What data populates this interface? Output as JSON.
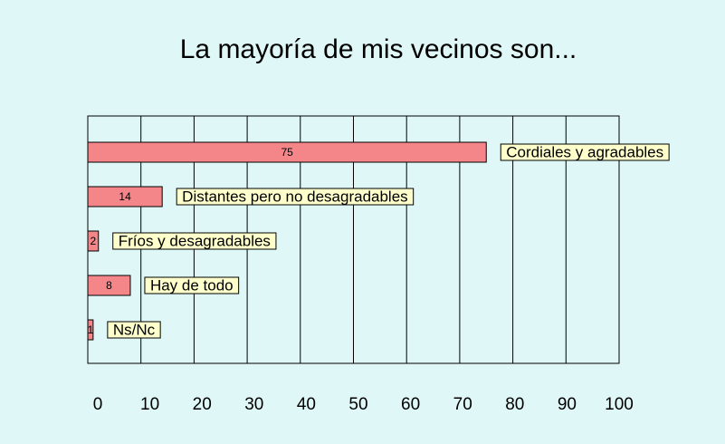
{
  "chart_data": {
    "type": "bar",
    "orientation": "horizontal",
    "title": "La mayoría de mis vecinos son...",
    "categories": [
      "Cordiales y agradables",
      "Distantes pero no desagradables",
      "Fríos y desagradables",
      "Hay de todo",
      "Ns/Nc"
    ],
    "values": [
      75,
      14,
      2,
      8,
      1
    ],
    "color": "#f4868a",
    "label_color": "#ffffcc",
    "xlim": [
      0,
      100
    ],
    "xticks": [
      0,
      10,
      20,
      30,
      40,
      50,
      60,
      70,
      80,
      90,
      100
    ],
    "grid": true
  }
}
